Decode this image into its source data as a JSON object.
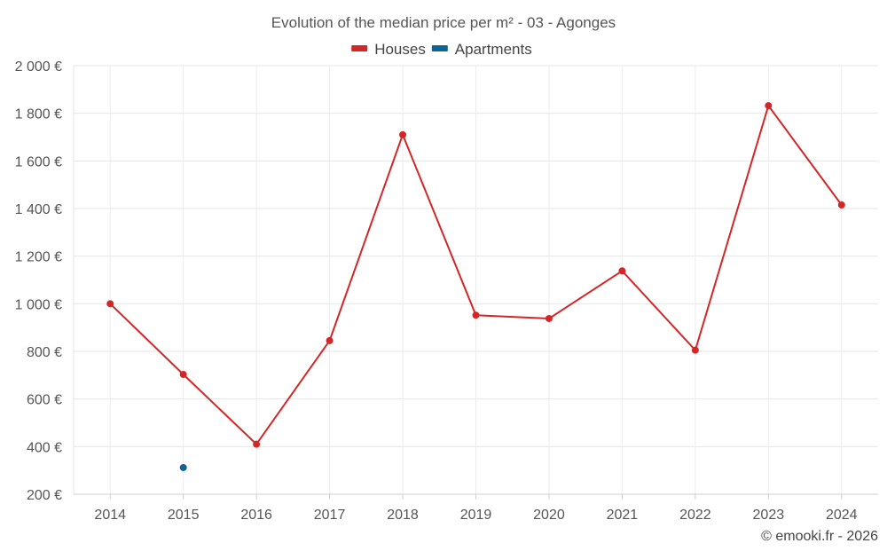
{
  "chart_data": {
    "type": "line",
    "title": "Evolution of the median price per m² - 03 - Agonges",
    "categories": [
      "2014",
      "2015",
      "2016",
      "2017",
      "2018",
      "2019",
      "2020",
      "2021",
      "2022",
      "2023",
      "2024"
    ],
    "series": [
      {
        "name": "Houses",
        "color": "#d32626",
        "values": [
          1000,
          703,
          410,
          845,
          1710,
          952,
          938,
          1138,
          805,
          1832,
          1415
        ]
      },
      {
        "name": "Apartments",
        "color": "#0d6497",
        "values": [
          null,
          312,
          null,
          null,
          null,
          null,
          null,
          null,
          null,
          null,
          null
        ]
      }
    ],
    "y_ticks": [
      200,
      400,
      600,
      800,
      1000,
      1200,
      1400,
      1600,
      1800,
      2000
    ],
    "y_tick_labels": [
      "200 €",
      "400 €",
      "600 €",
      "800 €",
      "1 000 €",
      "1 200 €",
      "1 400 €",
      "1 600 €",
      "1 800 €",
      "2 000 €"
    ],
    "ylim": [
      200,
      2000
    ],
    "grid": true,
    "legend_position": "top-center"
  },
  "credit": "© emooki.fr - 2026"
}
